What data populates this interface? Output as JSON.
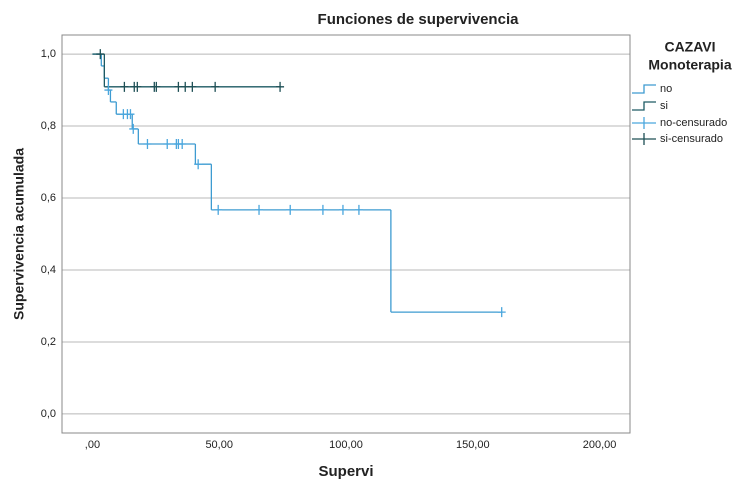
{
  "chart_data": {
    "type": "survival",
    "title": "Funciones de supervivencia",
    "x_label": "Supervi",
    "y_label": "Supervivencia acumulada",
    "legend_title": [
      "CAZAVI",
      "Monoterapia"
    ],
    "xlim": [
      -12,
      212
    ],
    "ylim": [
      -0.053,
      1.053
    ],
    "xticks": [
      {
        "value": 0,
        "label": ",00"
      },
      {
        "value": 50,
        "label": "50,00"
      },
      {
        "value": 100,
        "label": "100,00"
      },
      {
        "value": 150,
        "label": "150,00"
      },
      {
        "value": 200,
        "label": "200,00"
      }
    ],
    "yticks": [
      {
        "value": 0,
        "label": "0,0"
      },
      {
        "value": 0.2,
        "label": "0,2"
      },
      {
        "value": 0.4,
        "label": "0,4"
      },
      {
        "value": 0.6,
        "label": "0,6"
      },
      {
        "value": 0.8,
        "label": "0,8"
      },
      {
        "value": 1,
        "label": "1,0"
      }
    ],
    "grid": true,
    "series": [
      {
        "name": "no",
        "kind": "step",
        "color": "#3d9bd1",
        "x": [
          0,
          3.5,
          4.7,
          6.3,
          7.1,
          9.4,
          15.7,
          18.1,
          40.6,
          46.9,
          117.7,
          161.4
        ],
        "values": [
          1.0,
          0.967,
          0.933,
          0.9,
          0.867,
          0.833,
          0.792,
          0.75,
          0.694,
          0.567,
          0.283,
          0.283
        ]
      },
      {
        "name": "si",
        "kind": "step",
        "color": "#1d5a63",
        "x": [
          0,
          4.7,
          74.0
        ],
        "values": [
          1.0,
          0.909,
          0.909
        ]
      },
      {
        "name": "no-censurado",
        "kind": "censor",
        "color": "#4aa6dd",
        "x": [
          6.3,
          12.2,
          13.8,
          15.0,
          16.1,
          21.7,
          29.5,
          33.1,
          33.9,
          35.4,
          41.7,
          49.6,
          65.7,
          78.0,
          90.9,
          98.8,
          105.1,
          161.4
        ],
        "values": [
          0.9,
          0.833,
          0.833,
          0.833,
          0.792,
          0.75,
          0.75,
          0.75,
          0.75,
          0.75,
          0.694,
          0.567,
          0.567,
          0.567,
          0.567,
          0.567,
          0.567,
          0.283
        ]
      },
      {
        "name": "si-censurado",
        "kind": "censor",
        "color": "#1d4f55",
        "x": [
          3.1,
          12.6,
          16.5,
          17.7,
          24.4,
          25.2,
          33.9,
          36.6,
          39.4,
          48.4,
          74.0
        ],
        "values": [
          1.0,
          0.909,
          0.909,
          0.909,
          0.909,
          0.909,
          0.909,
          0.909,
          0.909,
          0.909,
          0.909
        ]
      }
    ]
  }
}
